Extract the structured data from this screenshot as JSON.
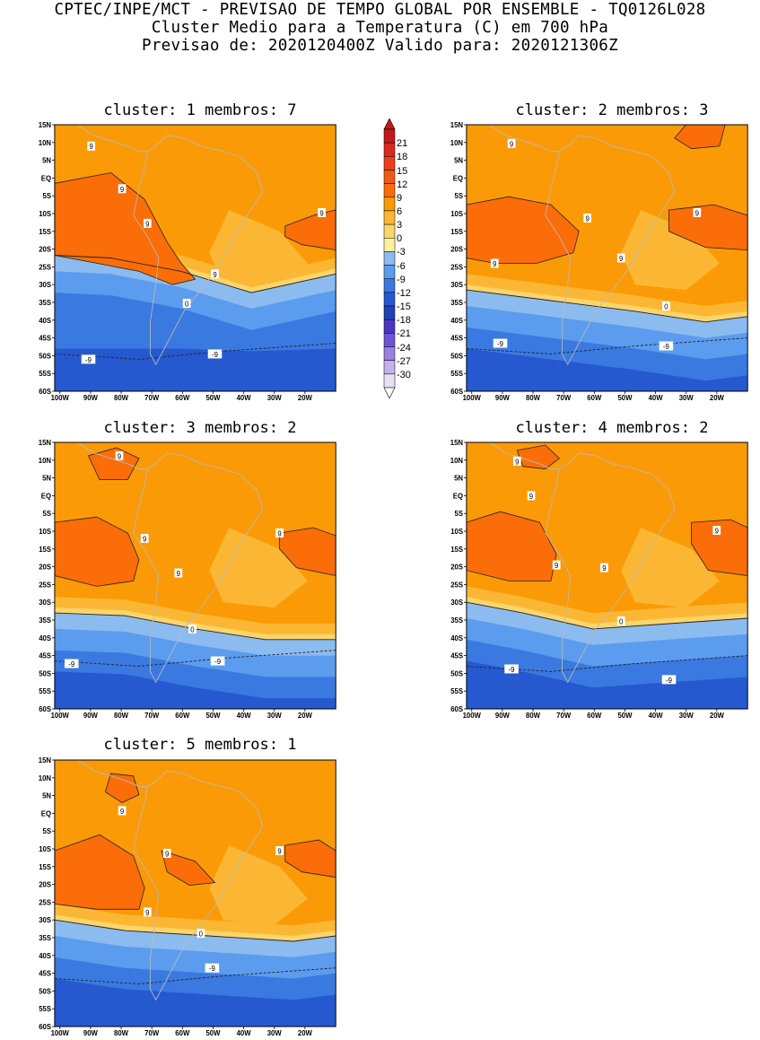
{
  "header": {
    "line1": "CPTEC/INPE/MCT - PREVISAO DE TEMPO GLOBAL POR ENSEMBLE - TQ0126L028",
    "line2": "Cluster Medio para a Temperatura (C) em 700 hPa",
    "line3": "Previsao de: 2020120400Z   Valido para: 2020121306Z"
  },
  "axes": {
    "lat_labels": [
      "15N",
      "10N",
      "5N",
      "EQ",
      "5S",
      "10S",
      "15S",
      "20S",
      "25S",
      "30S",
      "35S",
      "40S",
      "45S",
      "50S",
      "55S",
      "60S"
    ],
    "lon_labels": [
      "100W",
      "90W",
      "80W",
      "70W",
      "60W",
      "50W",
      "40W",
      "30W",
      "20W"
    ]
  },
  "colorbar": {
    "labels": [
      "21",
      "18",
      "15",
      "12",
      "9",
      "6",
      "3",
      "0",
      "-3",
      "-6",
      "-9",
      "-12",
      "-15",
      "-18",
      "-21",
      "-24",
      "-27",
      "-30"
    ],
    "colors": [
      "#c21a1a",
      "#d92a1e",
      "#ee3e1f",
      "#f05a14",
      "#fa6d08",
      "#fb9a07",
      "#fbb734",
      "#fbd56b",
      "#fdf19c",
      "#8cbbef",
      "#5b9cef",
      "#3a79e0",
      "#2659d0",
      "#2140b8",
      "#4a36c2",
      "#6f54d6",
      "#9b80e2",
      "#c3b2ee",
      "#e7e0f7"
    ]
  },
  "clusters": [
    {
      "title": "cluster: 1  membros: 7",
      "contour_labels": [
        "9",
        "9",
        "9",
        "9",
        "9",
        "0",
        "-9",
        "-9"
      ]
    },
    {
      "title": "cluster: 2  membros: 3",
      "contour_labels": [
        "9",
        "9",
        "9",
        "9",
        "9",
        "0",
        "-9",
        "-9"
      ]
    },
    {
      "title": "cluster: 3  membros: 2",
      "contour_labels": [
        "9",
        "9",
        "9",
        "9",
        "0",
        "-9",
        "-9"
      ]
    },
    {
      "title": "cluster: 4  membros: 2",
      "contour_labels": [
        "9",
        "9",
        "9",
        "9",
        "9",
        "0",
        "-9",
        "-9"
      ]
    },
    {
      "title": "cluster: 5  membros: 1",
      "contour_labels": [
        "9",
        "9",
        "9",
        "9",
        "0",
        "-9"
      ]
    }
  ]
}
